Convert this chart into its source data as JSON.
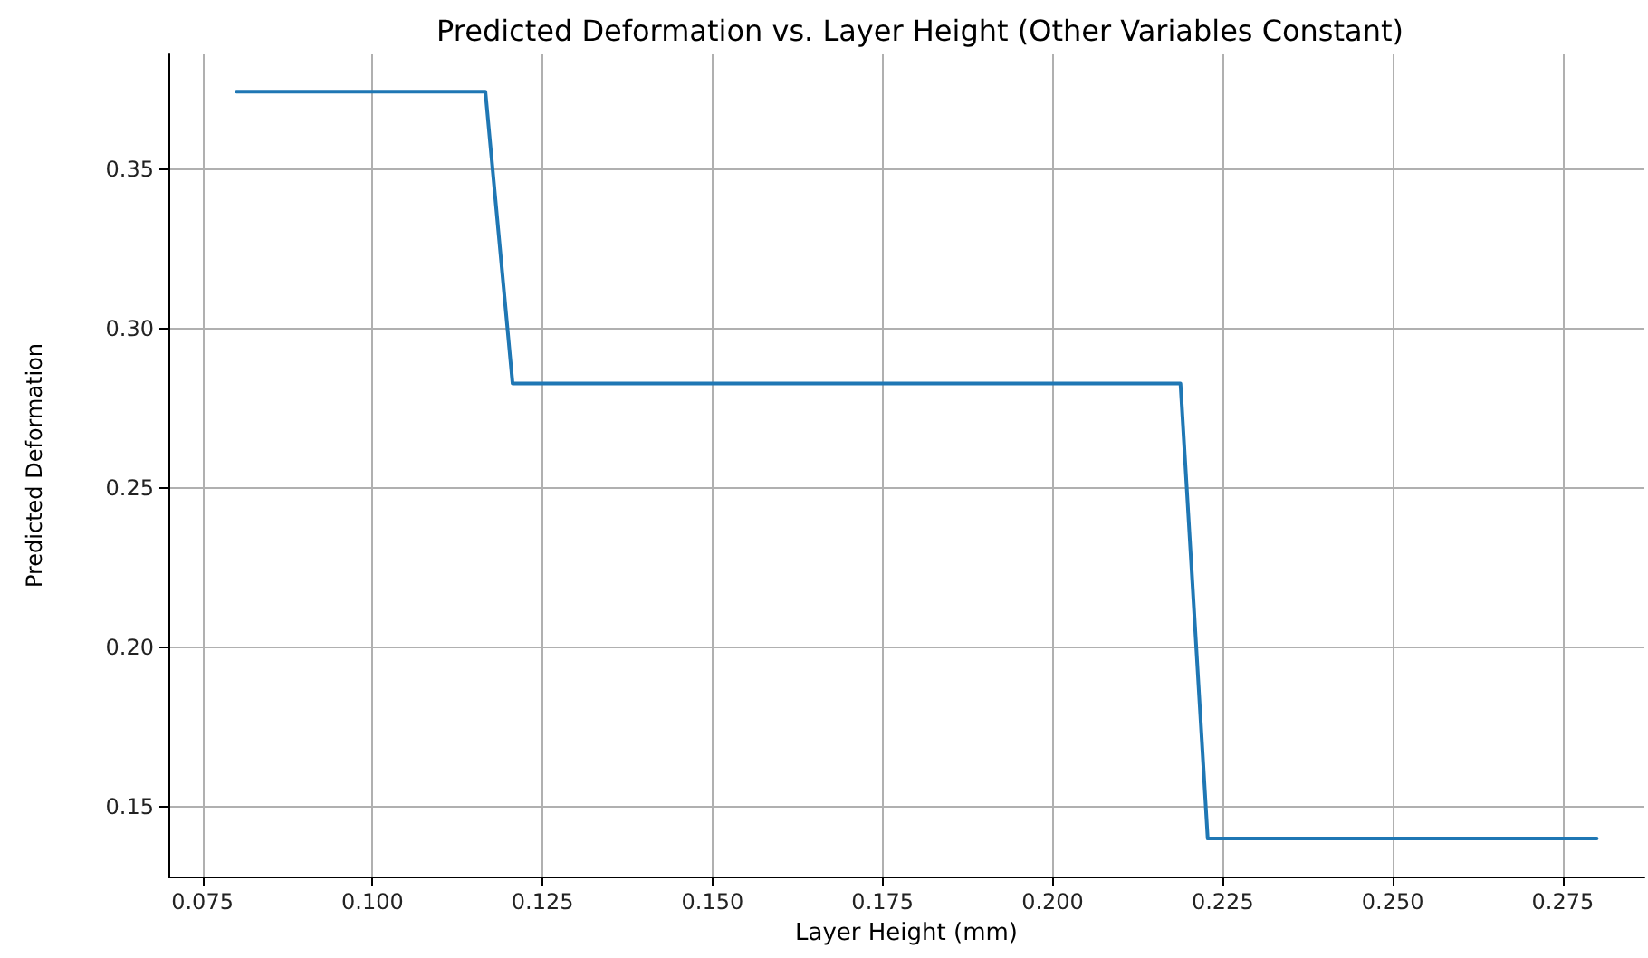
{
  "chart_data": {
    "type": "line",
    "title": "Predicted Deformation vs. Layer Height (Other Variables Constant)",
    "xlabel": "Layer Height (mm)",
    "ylabel": "Predicted Deformation",
    "x": [
      0.08,
      0.1166,
      0.1206,
      0.2188,
      0.2228,
      0.28
    ],
    "series": [
      {
        "color": "#1f77b4",
        "values": [
          0.3743,
          0.3743,
          0.2827,
          0.2827,
          0.1399,
          0.1399
        ]
      }
    ],
    "xlim": [
      0.07,
      0.287
    ],
    "xticks": [
      0.075,
      {
        "value": 0.1,
        "label": "0.100"
      },
      0.125,
      {
        "value": 0.15,
        "label": "0.150"
      },
      0.175,
      {
        "value": 0.2,
        "label": "0.200"
      },
      0.225,
      {
        "value": 0.25,
        "label": "0.250"
      },
      0.275
    ],
    "ylim": [
      0.128,
      0.386
    ],
    "yticks": [
      0.15,
      {
        "value": 0.2,
        "label": "0.20"
      },
      0.25,
      {
        "value": 0.3,
        "label": "0.30"
      },
      0.35
    ],
    "grid": true,
    "marker": "none",
    "line_style": "solid"
  }
}
